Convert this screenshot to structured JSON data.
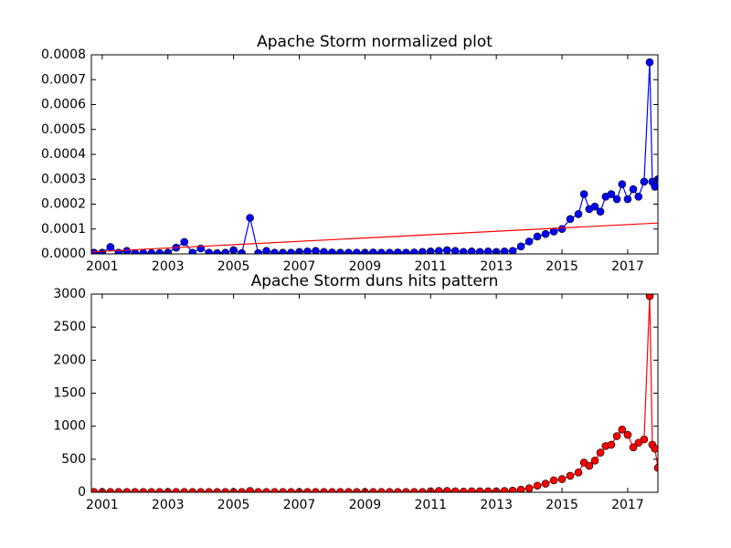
{
  "chart_data": [
    {
      "type": "line",
      "title": "Apache Storm normalized plot",
      "x": [
        2000.75,
        2001,
        2001.25,
        2001.5,
        2001.75,
        2002,
        2002.25,
        2002.5,
        2002.75,
        2003,
        2003.25,
        2003.5,
        2003.75,
        2004,
        2004.25,
        2004.5,
        2004.75,
        2005,
        2005.25,
        2005.5,
        2005.75,
        2006,
        2006.25,
        2006.5,
        2006.75,
        2007,
        2007.25,
        2007.5,
        2007.75,
        2008,
        2008.25,
        2008.5,
        2008.75,
        2009,
        2009.25,
        2009.5,
        2009.75,
        2010,
        2010.25,
        2010.5,
        2010.75,
        2011,
        2011.25,
        2011.5,
        2011.75,
        2012,
        2012.25,
        2012.5,
        2012.75,
        2013,
        2013.25,
        2013.5,
        2013.75,
        2014,
        2014.25,
        2014.5,
        2014.75,
        2015,
        2015.25,
        2015.5,
        2015.67,
        2015.83,
        2016,
        2016.17,
        2016.33,
        2016.5,
        2016.67,
        2016.83,
        2017,
        2017.17,
        2017.33,
        2017.5,
        2017.67,
        2017.75,
        2017.83,
        2017.92
      ],
      "series": [
        {
          "color": "#0000ff",
          "marker": true,
          "marker_edge": "#000000",
          "values": [
            5e-06,
            5e-06,
            2.8e-05,
            5e-06,
            1.2e-05,
            3e-06,
            3e-06,
            3e-06,
            3e-06,
            5e-06,
            2.5e-05,
            4.8e-05,
            5e-06,
            2.2e-05,
            5e-06,
            3e-06,
            5e-06,
            1.5e-05,
            3e-06,
            0.000145,
            3e-06,
            1.2e-05,
            5e-06,
            5e-06,
            5e-06,
            8e-06,
            1e-05,
            1.2e-05,
            8e-06,
            6e-06,
            5e-06,
            5e-06,
            5e-06,
            5e-06,
            6e-06,
            5e-06,
            5e-06,
            6e-06,
            5e-06,
            6e-06,
            8e-06,
            1e-05,
            1.2e-05,
            1.5e-05,
            1.2e-05,
            8e-06,
            1e-05,
            8e-06,
            1e-05,
            8e-06,
            1e-05,
            1.2e-05,
            3e-05,
            5e-05,
            7e-05,
            8e-05,
            9e-05,
            0.0001,
            0.00014,
            0.00016,
            0.00024,
            0.00018,
            0.00019,
            0.00017,
            0.00023,
            0.00024,
            0.00022,
            0.00028,
            0.00022,
            0.00026,
            0.00023,
            0.00029,
            0.00077,
            0.00029,
            0.00027,
            0.0003
          ]
        },
        {
          "color": "#ff0000",
          "marker": false,
          "x": [
            2000.67,
            2017.92
          ],
          "values": [
            8e-06,
            0.000124
          ]
        }
      ],
      "xlim": [
        2000.67,
        2017.92
      ],
      "xticks": [
        2001,
        2003,
        2005,
        2007,
        2009,
        2011,
        2013,
        2015,
        2017
      ],
      "ylim": [
        0,
        0.0008
      ],
      "yticks": [
        {
          "value": 0,
          "label": "0.0000"
        },
        {
          "value": 0.0001,
          "label": "0.0001"
        },
        {
          "value": 0.0002,
          "label": "0.0002"
        },
        {
          "value": 0.0003,
          "label": "0.0003"
        },
        {
          "value": 0.0004,
          "label": "0.0004"
        },
        {
          "value": 0.0005,
          "label": "0.0005"
        },
        {
          "value": 0.0006,
          "label": "0.0006"
        },
        {
          "value": 0.0007,
          "label": "0.0007"
        },
        {
          "value": 0.0008,
          "label": "0.0008"
        }
      ]
    },
    {
      "type": "line",
      "title": "Apache Storm duns hits pattern",
      "x": [
        2000.75,
        2001,
        2001.25,
        2001.5,
        2001.75,
        2002,
        2002.25,
        2002.5,
        2002.75,
        2003,
        2003.25,
        2003.5,
        2003.75,
        2004,
        2004.25,
        2004.5,
        2004.75,
        2005,
        2005.25,
        2005.5,
        2005.75,
        2006,
        2006.25,
        2006.5,
        2006.75,
        2007,
        2007.25,
        2007.5,
        2007.75,
        2008,
        2008.25,
        2008.5,
        2008.75,
        2009,
        2009.25,
        2009.5,
        2009.75,
        2010,
        2010.25,
        2010.5,
        2010.75,
        2011,
        2011.25,
        2011.5,
        2011.75,
        2012,
        2012.25,
        2012.5,
        2012.75,
        2013,
        2013.25,
        2013.5,
        2013.75,
        2014,
        2014.25,
        2014.5,
        2014.75,
        2015,
        2015.25,
        2015.5,
        2015.67,
        2015.83,
        2016,
        2016.17,
        2016.33,
        2016.5,
        2016.67,
        2016.83,
        2017,
        2017.17,
        2017.33,
        2017.5,
        2017.67,
        2017.75,
        2017.83,
        2017.92
      ],
      "series": [
        {
          "color": "#ff0000",
          "marker": true,
          "marker_edge": "#000000",
          "values": [
            5,
            5,
            5,
            5,
            5,
            5,
            5,
            5,
            5,
            5,
            5,
            5,
            5,
            5,
            5,
            5,
            5,
            5,
            5,
            20,
            5,
            5,
            5,
            5,
            5,
            5,
            5,
            5,
            5,
            5,
            5,
            5,
            5,
            5,
            5,
            5,
            5,
            5,
            5,
            5,
            5,
            15,
            20,
            20,
            15,
            10,
            15,
            15,
            15,
            15,
            20,
            25,
            40,
            60,
            100,
            130,
            180,
            200,
            250,
            300,
            450,
            400,
            480,
            600,
            700,
            720,
            850,
            950,
            870,
            680,
            750,
            800,
            2970,
            720,
            660,
            370
          ]
        }
      ],
      "xlim": [
        2000.67,
        2017.92
      ],
      "xticks": [
        2001,
        2003,
        2005,
        2007,
        2009,
        2011,
        2013,
        2015,
        2017
      ],
      "ylim": [
        0,
        3000
      ],
      "yticks": [
        0,
        500,
        1000,
        1500,
        2000,
        2500,
        3000
      ]
    }
  ]
}
